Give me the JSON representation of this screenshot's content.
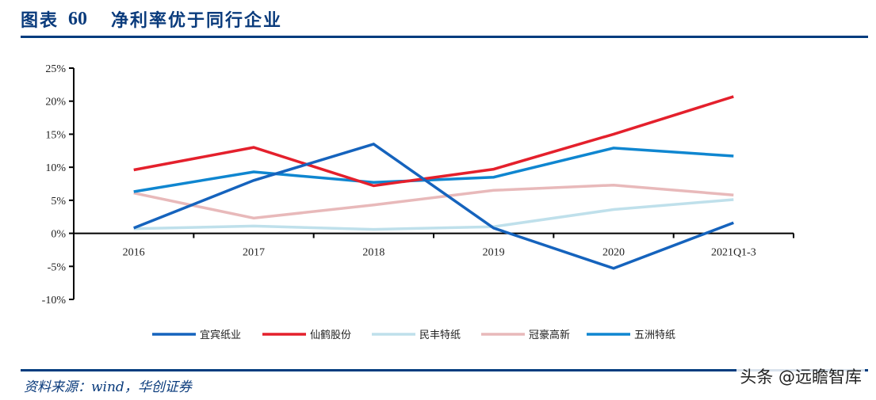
{
  "header": {
    "figure_label": "图表",
    "figure_number": "60",
    "figure_title": "净利率优于同行企业"
  },
  "footer": {
    "source": "资料来源：wind，华创证券",
    "watermark": "头条 @远瞻智库"
  },
  "chart_data": {
    "type": "line",
    "title": "净利率优于同行企业",
    "xlabel": "",
    "ylabel": "",
    "categories": [
      "2016",
      "2017",
      "2018",
      "2019",
      "2020",
      "2021Q1-3"
    ],
    "ylim": [
      -10,
      25
    ],
    "yticks": [
      -10,
      -5,
      0,
      5,
      10,
      15,
      20,
      25
    ],
    "ytick_labels": [
      "-10%",
      "-5%",
      "0%",
      "5%",
      "10%",
      "15%",
      "20%",
      "25%"
    ],
    "y_unit": "%",
    "grid": false,
    "legend_position": "bottom",
    "series": [
      {
        "name": "宜宾纸业",
        "color": "#1563bd",
        "values": [
          0.8,
          8.0,
          13.5,
          0.8,
          -5.3,
          1.6
        ]
      },
      {
        "name": "仙鹤股份",
        "color": "#e4202c",
        "values": [
          9.6,
          13.0,
          7.2,
          9.7,
          15.0,
          20.7
        ]
      },
      {
        "name": "民丰特纸",
        "color": "#bfe0eb",
        "values": [
          0.7,
          1.1,
          0.6,
          1.0,
          3.6,
          5.1
        ]
      },
      {
        "name": "冠豪高新",
        "color": "#e8b9ba",
        "values": [
          6.1,
          2.3,
          4.3,
          6.5,
          7.3,
          5.8
        ]
      },
      {
        "name": "五洲特纸",
        "color": "#0f86d0",
        "values": [
          6.3,
          9.3,
          7.7,
          8.5,
          12.9,
          11.7
        ]
      }
    ]
  }
}
